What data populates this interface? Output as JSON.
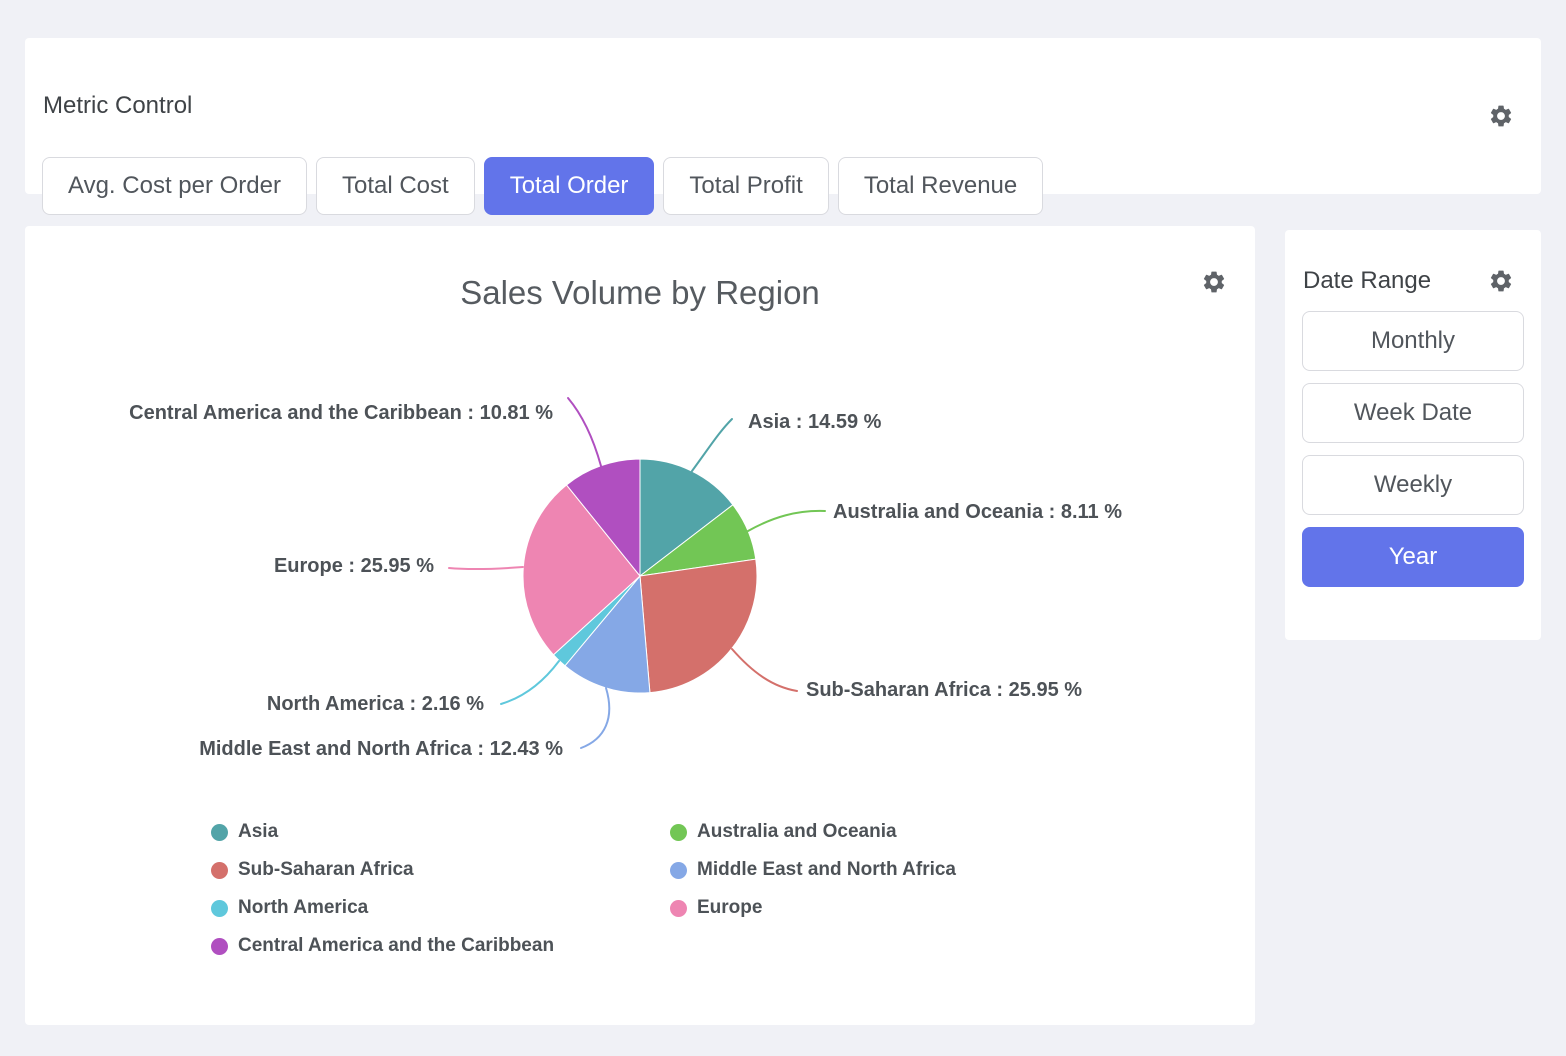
{
  "page": {
    "background": "#f0f1f6",
    "accent": "#6274ea"
  },
  "metric_control": {
    "title": "Metric Control",
    "buttons": [
      {
        "label": "Avg. Cost per Order",
        "selected": false
      },
      {
        "label": "Total Cost",
        "selected": false
      },
      {
        "label": "Total Order",
        "selected": true
      },
      {
        "label": "Total Profit",
        "selected": false
      },
      {
        "label": "Total Revenue",
        "selected": false
      }
    ]
  },
  "date_range": {
    "title": "Date Range",
    "buttons": [
      {
        "label": "Monthly",
        "selected": false
      },
      {
        "label": "Week Date",
        "selected": false
      },
      {
        "label": "Weekly",
        "selected": false
      },
      {
        "label": "Year",
        "selected": true
      }
    ]
  },
  "chart_data": {
    "type": "pie",
    "title": "Sales Volume by Region",
    "legend_position": "bottom",
    "value_unit": "%",
    "start_angle": "top",
    "direction": "clockwise",
    "slices": [
      {
        "label": "Asia",
        "value": 14.59,
        "color": "#52a4a8",
        "callout": "Asia : 14.59 %"
      },
      {
        "label": "Australia and Oceania",
        "value": 8.11,
        "color": "#72c655",
        "callout": "Australia and Oceania : 8.11 %"
      },
      {
        "label": "Sub-Saharan Africa",
        "value": 25.95,
        "color": "#d4706b",
        "callout": "Sub-Saharan Africa : 25.95 %"
      },
      {
        "label": "Middle East and North Africa",
        "value": 12.43,
        "color": "#85a8e6",
        "callout": "Middle East and North Africa : 12.43 %"
      },
      {
        "label": "North America",
        "value": 2.16,
        "color": "#5fc8dc",
        "callout": "North America : 2.16 %"
      },
      {
        "label": "Europe",
        "value": 25.95,
        "color": "#ee85b2",
        "callout": "Europe : 25.95 %"
      },
      {
        "label": "Central America and the Caribbean",
        "value": 10.81,
        "color": "#b04fc0",
        "callout": "Central America and the Caribbean : 10.81 %"
      }
    ]
  }
}
